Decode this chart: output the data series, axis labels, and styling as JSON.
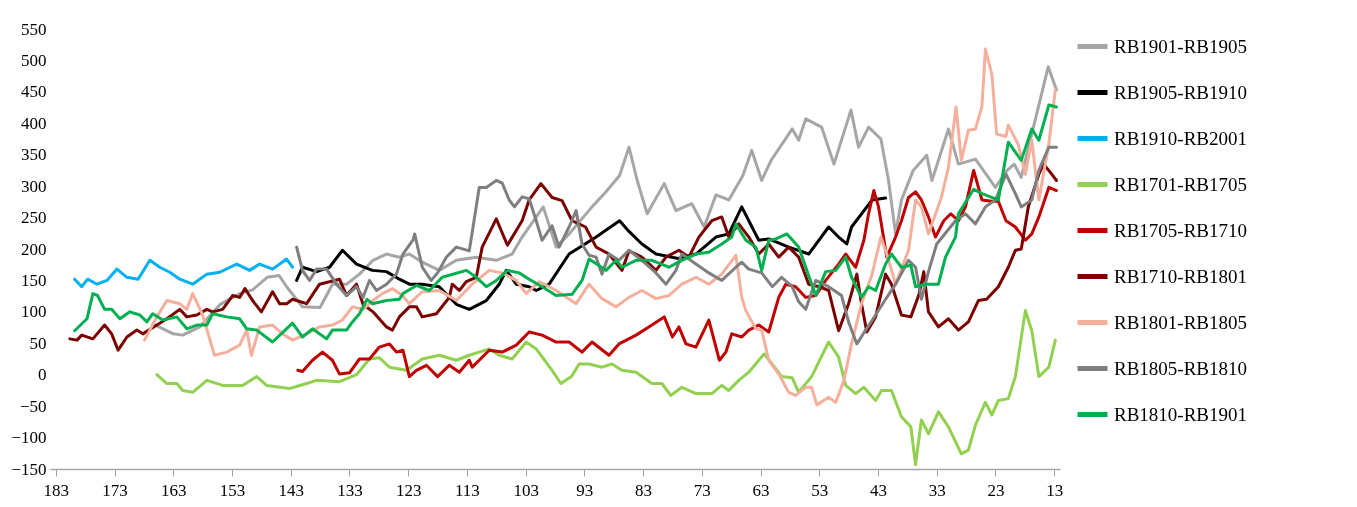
{
  "chart_data": {
    "type": "line",
    "xlim": [
      184,
      12
    ],
    "xticks": [
      183,
      173,
      163,
      153,
      143,
      133,
      123,
      113,
      103,
      93,
      83,
      73,
      63,
      53,
      43,
      33,
      23,
      13
    ],
    "ylim": [
      -150,
      550
    ],
    "yticks": [
      -150,
      -100,
      -50,
      0,
      50,
      100,
      150,
      200,
      250,
      300,
      350,
      400,
      450,
      500,
      550
    ],
    "grid": false,
    "legend": "right",
    "line_style": "solid",
    "marker": "none",
    "series": [
      {
        "name": "RB1901-RB1905",
        "color": "#a6a6a6",
        "x": [
          166.5,
          163,
          161.4,
          158.5,
          155,
          151.7,
          149.5,
          147,
          145,
          143.7,
          141,
          138,
          135.9,
          133.5,
          131.3,
          129,
          126.7,
          124.5,
          122.8,
          120.6,
          117.7,
          114.8,
          111.4,
          108,
          105.3,
          103.6,
          100,
          97.8,
          95.6,
          91.7,
          89.3,
          87,
          85.4,
          84,
          82.3,
          79.4,
          77.4,
          74.7,
          72.6,
          70.6,
          68.4,
          66,
          64.5,
          62.8,
          61.2,
          57.6,
          56.5,
          55.3,
          52.6,
          50.5,
          47.6,
          46.3,
          44.6,
          42.5,
          41.2,
          40,
          39,
          37,
          34.7,
          33.8,
          31,
          29.3,
          26.4,
          23,
          21,
          19.8,
          18.6,
          16.8,
          14,
          12.6
        ],
        "values": [
          81,
          65,
          63,
          76,
          112,
          129,
          135,
          155,
          158,
          140,
          108,
          107,
          144,
          144,
          160,
          182,
          192,
          187,
          192,
          179,
          166,
          182,
          187,
          182,
          192,
          219,
          267,
          203,
          224,
          267,
          291,
          317,
          362,
          309,
          256,
          304,
          261,
          272,
          235,
          286,
          278,
          317,
          357,
          309,
          341,
          391,
          373,
          407,
          394,
          335,
          421,
          362,
          394,
          375,
          309,
          224,
          278,
          325,
          349,
          309,
          391,
          335,
          343,
          298,
          325,
          335,
          314,
          383,
          490,
          453
        ]
      },
      {
        "name": "RB1905-RB1910",
        "color": "#000000",
        "x": [
          142,
          141,
          138.6,
          136.4,
          134.2,
          131.8,
          129.1,
          126.7,
          124.5,
          122.8,
          120.6,
          117.7,
          114.8,
          112.6,
          109.7,
          107.5,
          106.3,
          104.6,
          102.4,
          101.2,
          99,
          95.6,
          91,
          87,
          85.4,
          83.2,
          80.8,
          77,
          74,
          70.6,
          68.4,
          66.2,
          65,
          63.3,
          61.6,
          58.2,
          54.8,
          51.4,
          49.7,
          48.3,
          47.5,
          45.8,
          44,
          41.7
        ],
        "values": [
          150,
          171,
          164,
          171,
          198,
          176,
          166,
          164,
          152,
          144,
          144,
          140,
          112,
          104,
          118,
          144,
          166,
          144,
          140,
          134,
          144,
          192,
          219,
          245,
          228,
          208,
          192,
          185,
          192,
          219,
          224,
          267,
          245,
          214,
          216,
          203,
          192,
          235,
          219,
          208,
          235,
          256,
          278,
          281
        ]
      },
      {
        "name": "RB1910-RB2001",
        "color": "#00b0f0",
        "x": [
          179.8,
          178.6,
          177.6,
          176,
          174.3,
          172.6,
          170.9,
          169,
          167,
          165.3,
          163.6,
          161.9,
          159.7,
          157.3,
          155.1,
          152.2,
          150,
          148.3,
          146.1,
          143.7,
          142.7
        ],
        "values": [
          152,
          140,
          152,
          144,
          150,
          168,
          155,
          152,
          182,
          171,
          163,
          152,
          144,
          160,
          163,
          176,
          166,
          176,
          168,
          184,
          171
        ]
      },
      {
        "name": "RB1701-RB1705",
        "color": "#92d050",
        "x": [
          165.8,
          164.1,
          162.4,
          161.4,
          159.7,
          157.3,
          154.6,
          151.2,
          148.8,
          147.1,
          143.2,
          140.3,
          138.6,
          134.7,
          131.8,
          129.6,
          127.9,
          126.2,
          123.3,
          120.6,
          117.7,
          114.8,
          112.6,
          109.2,
          107.5,
          105.3,
          102.9,
          101.2,
          98.5,
          97,
          95.2,
          93.9,
          92.2,
          90,
          88.3,
          86.6,
          84.2,
          81.5,
          79.8,
          78.3,
          76.4,
          74,
          71.3,
          69.6,
          68.4,
          66.7,
          65,
          62.4,
          61,
          59.4,
          57.6,
          56.5,
          54.3,
          51.4,
          49.7,
          48.5,
          46.8,
          45.4,
          43.4,
          42.4,
          40.7,
          39,
          37.4,
          36.6,
          35.6,
          34.4,
          32.7,
          31,
          28.8,
          27.6,
          26.4,
          24.7,
          23.6,
          22.5,
          20.8,
          19.6,
          17.9,
          16.8,
          15.6,
          13.9,
          12.8
        ],
        "values": [
          0,
          -14,
          -14,
          -25,
          -28,
          -9,
          -17,
          -17,
          -3,
          -17,
          -22,
          -14,
          -9,
          -11,
          0,
          25,
          27,
          12,
          7,
          25,
          31,
          23,
          31,
          41,
          31,
          25,
          52,
          41,
          7,
          -14,
          -3,
          17,
          17,
          12,
          17,
          7,
          4,
          -14,
          -14,
          -33,
          -20,
          -30,
          -30,
          -17,
          -25,
          -9,
          4,
          33,
          17,
          -3,
          -5,
          -28,
          -3,
          52,
          28,
          -17,
          -30,
          -20,
          -41,
          -25,
          -25,
          -67,
          -83,
          -143,
          -72,
          -94,
          -59,
          -83,
          -126,
          -120,
          -80,
          -44,
          -64,
          -41,
          -38,
          -3,
          102,
          70,
          -3,
          12,
          55
        ]
      },
      {
        "name": "RB1705-RB1710",
        "color": "#c00000",
        "x": [
          141.8,
          141,
          139.3,
          137.6,
          135.9,
          134.7,
          133,
          131.3,
          129.6,
          127.9,
          126.2,
          125,
          123.9,
          122.8,
          121.6,
          119.9,
          118,
          116,
          114.3,
          112.6,
          112.1,
          109.2,
          107,
          104.6,
          102.4,
          100.2,
          97.8,
          95.6,
          93.4,
          91.7,
          88.8,
          87.1,
          84.2,
          81.5,
          79.4,
          78,
          76.9,
          75.7,
          74,
          71.8,
          70,
          68.9,
          67.9,
          66.2,
          65,
          63.3,
          61.6,
          59.9,
          58.7,
          57,
          55.3,
          53.6,
          51.9,
          49.7,
          48.5,
          46.8,
          45.4,
          44.6,
          43.7,
          42.9,
          41.5,
          40,
          39,
          37.8,
          36.6,
          35.6,
          34.4,
          33.2,
          31.8,
          30.6,
          29.3,
          28.1,
          26.7,
          25.3,
          23.6,
          22.5,
          21.2,
          19.6,
          17.9,
          16.8,
          15.6,
          13.9,
          12.6
        ],
        "values": [
          7,
          5,
          23,
          36,
          23,
          1,
          3,
          25,
          25,
          44,
          49,
          36,
          39,
          -3,
          7,
          15,
          -3,
          15,
          4,
          23,
          12,
          39,
          36,
          47,
          68,
          63,
          52,
          52,
          36,
          52,
          31,
          49,
          63,
          79,
          92,
          60,
          76,
          49,
          44,
          87,
          23,
          36,
          65,
          60,
          71,
          79,
          68,
          123,
          144,
          140,
          123,
          126,
          150,
          176,
          192,
          171,
          214,
          256,
          293,
          267,
          187,
          219,
          245,
          282,
          291,
          278,
          251,
          219,
          245,
          256,
          245,
          267,
          325,
          278,
          276,
          276,
          245,
          235,
          214,
          224,
          251,
          298,
          293
        ]
      },
      {
        "name": "RB1710-RB1801",
        "color": "#7b0000",
        "x": [
          180.6,
          179.4,
          178.6,
          176.7,
          174.7,
          173.5,
          172.4,
          170.9,
          169.2,
          168.2,
          165.8,
          164.1,
          161.9,
          160.7,
          159,
          157.3,
          156.3,
          154.6,
          152.9,
          151.7,
          150.8,
          149.5,
          148,
          146.1,
          144.9,
          143.7,
          142.7,
          140.3,
          138.1,
          136.4,
          134.7,
          133.5,
          131.8,
          130.7,
          129,
          126.7,
          125.7,
          124.5,
          122.8,
          121.6,
          120.6,
          118.2,
          116,
          115.5,
          114.3,
          113.1,
          111.4,
          110.4,
          108,
          106.1,
          103.6,
          102.4,
          100.4,
          98.5,
          96.8,
          95.1,
          92.8,
          91,
          88.8,
          86.6,
          85.4,
          83.2,
          80.8,
          79.1,
          76.9,
          75.2,
          73.5,
          71.3,
          69.6,
          68.4,
          66.7,
          65,
          63.3,
          61.6,
          59.9,
          58.2,
          56.5,
          54.8,
          53,
          51.4,
          49.7,
          48,
          46.6,
          45.8,
          44.9,
          43.4,
          41.7,
          40.7,
          39,
          37.4,
          36,
          35.2,
          34.4,
          32.7,
          31,
          29.3,
          27.6,
          25.9,
          24.5,
          22.5,
          20.8,
          19.6,
          18.6,
          17.4,
          15.6,
          14.8,
          13.9,
          12.6
        ],
        "values": [
          57,
          55,
          63,
          57,
          79,
          65,
          39,
          60,
          71,
          65,
          79,
          89,
          104,
          92,
          95,
          104,
          100,
          104,
          126,
          123,
          137,
          118,
          100,
          132,
          113,
          113,
          120,
          113,
          144,
          148,
          152,
          126,
          144,
          112,
          100,
          76,
          71,
          92,
          108,
          108,
          92,
          97,
          123,
          144,
          134,
          148,
          155,
          203,
          248,
          206,
          245,
          278,
          304,
          282,
          277,
          245,
          235,
          203,
          192,
          166,
          197,
          187,
          166,
          187,
          198,
          187,
          219,
          245,
          251,
          219,
          240,
          219,
          192,
          208,
          187,
          203,
          187,
          144,
          140,
          134,
          70,
          113,
          160,
          113,
          68,
          92,
          160,
          144,
          95,
          92,
          128,
          164,
          100,
          76,
          89,
          71,
          84,
          118,
          120,
          140,
          171,
          198,
          200,
          267,
          319,
          335,
          325,
          309
        ]
      },
      {
        "name": "RB1801-RB1805",
        "color": "#f4b09c",
        "x": [
          167.9,
          165.8,
          164.1,
          161.9,
          160.7,
          159.7,
          158,
          156,
          153.9,
          151.7,
          150.5,
          149.7,
          148.3,
          146.1,
          144.4,
          142.7,
          140.3,
          138.1,
          135.9,
          134.2,
          132.5,
          130.7,
          129,
          127.4,
          125.7,
          124,
          122.8,
          120.6,
          117.7,
          114.8,
          112.1,
          109.2,
          107,
          104.6,
          102.9,
          100.7,
          97.8,
          94.4,
          92.2,
          90,
          87.6,
          85.4,
          83.2,
          80.8,
          78.6,
          76.4,
          74,
          71.8,
          69.6,
          67.2,
          66.2,
          65.5,
          63.8,
          62.8,
          61.6,
          59.9,
          58.2,
          57,
          55.3,
          54.3,
          53.4,
          51.4,
          50.2,
          48.8,
          47.5,
          45.8,
          44,
          42.5,
          41.5,
          40,
          37.8,
          36.6,
          35.6,
          34.4,
          32.2,
          31,
          29.7,
          28.8,
          27.6,
          26.4,
          25.3,
          24.7,
          23.6,
          22.8,
          21.2,
          20.8,
          19.1,
          17.9,
          16.8,
          15.6,
          13.9,
          12.8
        ],
        "values": [
          55,
          92,
          118,
          113,
          104,
          129,
          95,
          31,
          36,
          47,
          71,
          31,
          76,
          79,
          65,
          55,
          65,
          76,
          79,
          87,
          108,
          104,
          118,
          129,
          137,
          126,
          113,
          132,
          134,
          118,
          144,
          166,
          162,
          150,
          129,
          148,
          134,
          113,
          144,
          121,
          108,
          123,
          134,
          121,
          126,
          144,
          155,
          144,
          160,
          190,
          123,
          102,
          73,
          71,
          23,
          1,
          -28,
          -33,
          -20,
          -20,
          -48,
          -36,
          -44,
          -9,
          49,
          113,
          160,
          219,
          192,
          144,
          198,
          278,
          267,
          224,
          282,
          330,
          426,
          341,
          389,
          391,
          426,
          518,
          478,
          383,
          379,
          397,
          366,
          319,
          373,
          278,
          367,
          453
        ]
      },
      {
        "name": "RB1805-RB1810",
        "color": "#7f7f7f",
        "x": [
          142,
          141,
          139.8,
          138.6,
          136.9,
          135.2,
          133.5,
          131.8,
          130.7,
          129.6,
          128.4,
          126.7,
          125,
          123.9,
          122.2,
          121.9,
          120.6,
          119.1,
          118,
          116.5,
          114.8,
          112.6,
          110.9,
          109.7,
          108,
          107,
          105.8,
          104.9,
          103.6,
          102.4,
          101.2,
          100.2,
          98.5,
          97.3,
          95.6,
          94.4,
          93.4,
          92.2,
          91,
          90,
          88.8,
          87.1,
          85.4,
          83.2,
          80.8,
          79.1,
          77.4,
          76.4,
          74,
          71.8,
          69.6,
          67.2,
          66.2,
          65,
          62.8,
          61,
          59.4,
          57.6,
          56.5,
          55.3,
          53.6,
          51.4,
          49.2,
          48,
          46.6,
          45.1,
          43.4,
          41.7,
          40,
          37.8,
          36.6,
          35.6,
          34.4,
          33,
          29.8,
          28.1,
          26.4,
          24.7,
          23,
          21.2,
          19.6,
          18.6,
          16.8,
          15.6,
          13.9,
          12.6
        ],
        "values": [
          203,
          166,
          150,
          168,
          168,
          144,
          126,
          140,
          123,
          150,
          134,
          144,
          160,
          192,
          214,
          224,
          171,
          150,
          162,
          187,
          203,
          197,
          298,
          298,
          309,
          305,
          278,
          267,
          283,
          280,
          245,
          214,
          237,
          203,
          235,
          261,
          208,
          190,
          187,
          160,
          192,
          182,
          198,
          182,
          162,
          144,
          166,
          192,
          176,
          162,
          150,
          171,
          179,
          168,
          162,
          140,
          155,
          140,
          116,
          104,
          150,
          140,
          126,
          84,
          49,
          71,
          95,
          120,
          144,
          182,
          171,
          120,
          164,
          208,
          245,
          256,
          240,
          267,
          278,
          319,
          288,
          267,
          278,
          325,
          362,
          362
        ]
      },
      {
        "name": "RB1810-RB1901",
        "color": "#00b050",
        "x": [
          179.8,
          177.7,
          176.7,
          175.9,
          174.7,
          173.5,
          172.1,
          170.4,
          168.7,
          167.5,
          166.5,
          164.8,
          162.4,
          160.7,
          159,
          157.3,
          156.3,
          153.9,
          151.7,
          150.5,
          148.8,
          146.1,
          142.7,
          141,
          139.3,
          136.9,
          135.9,
          133.5,
          132.5,
          131.3,
          130,
          129.1,
          126.7,
          124.5,
          123.9,
          121.6,
          119.4,
          117.2,
          113.1,
          111.4,
          109.7,
          108,
          106.1,
          104.1,
          102.4,
          100.2,
          97.8,
          95.1,
          93.4,
          92.2,
          89.3,
          87.6,
          86.6,
          84.2,
          81.5,
          78.6,
          76.4,
          74,
          71.8,
          69.6,
          67.9,
          67.2,
          65.5,
          63.8,
          62.8,
          61.6,
          60.4,
          58.5,
          56.5,
          55.3,
          53.6,
          51.9,
          50.2,
          48.5,
          47.5,
          45.8,
          44.6,
          43.4,
          41.7,
          40.7,
          39,
          37.4,
          36.6,
          34.9,
          32.7,
          31.5,
          29.8,
          29.3,
          26.7,
          25.3,
          22.5,
          20.8,
          18.6,
          16.8,
          15.6,
          13.9,
          12.6
        ],
        "values": [
          70,
          89,
          129,
          126,
          104,
          104,
          89,
          100,
          95,
          84,
          97,
          87,
          92,
          73,
          79,
          79,
          97,
          92,
          89,
          73,
          71,
          52,
          82,
          60,
          73,
          57,
          71,
          71,
          84,
          97,
          120,
          113,
          118,
          120,
          129,
          142,
          134,
          155,
          166,
          155,
          140,
          150,
          166,
          162,
          152,
          140,
          126,
          128,
          150,
          184,
          166,
          182,
          171,
          182,
          182,
          171,
          182,
          192,
          195,
          208,
          219,
          240,
          214,
          203,
          166,
          214,
          216,
          224,
          203,
          171,
          126,
          164,
          166,
          187,
          155,
          123,
          140,
          134,
          176,
          192,
          171,
          174,
          140,
          144,
          144,
          187,
          219,
          256,
          295,
          288,
          278,
          370,
          341,
          391,
          373,
          429,
          426
        ]
      }
    ]
  }
}
